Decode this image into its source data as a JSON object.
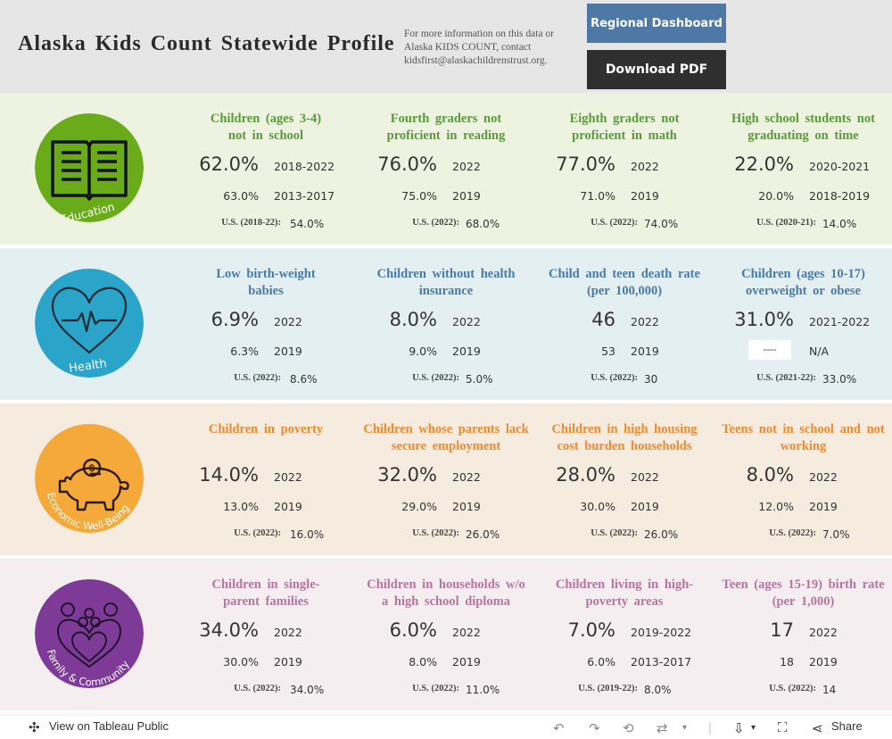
{
  "header": {
    "title": "Alaska Kids Count Statewide Profile",
    "info": "For more information on this data or Alaska KIDS COUNT, contact kidsfirst@alaskachildrenstrust.org.",
    "regional_button": "Regional Dashboard",
    "pdf_button": "Download PDF"
  },
  "sections": {
    "education": {
      "label": "Education",
      "color": "#6aab1a",
      "bg": "#eef2e0",
      "title_color": "#5a9a3a",
      "cards": [
        {
          "title": "Children (ages 3-4) not in school",
          "value": "62.0%",
          "year": "2018-2022",
          "prev_value": "63.0%",
          "prev_year": "2013-2017",
          "us_label": "U.S. (2018-22):",
          "us_value": "54.0%"
        },
        {
          "title": "Fourth graders not proficient in reading",
          "value": "76.0%",
          "year": "2022",
          "prev_value": "75.0%",
          "prev_year": "2019",
          "us_label": "U.S. (2022):",
          "us_value": "68.0%"
        },
        {
          "title": "Eighth graders not proficient in math",
          "value": "77.0%",
          "year": "2022",
          "prev_value": "71.0%",
          "prev_year": "2019",
          "us_label": "U.S. (2022):",
          "us_value": "74.0%"
        },
        {
          "title": "High school students not graduating on time",
          "value": "22.0%",
          "year": "2020-2021",
          "prev_value": "20.0%",
          "prev_year": "2018-2019",
          "us_label": "U.S. (2020-21):",
          "us_value": "14.0%"
        }
      ]
    },
    "health": {
      "label": "Health",
      "color": "#2aa4c9",
      "bg": "#e3eff0",
      "title_color": "#4a7ba7",
      "cards": [
        {
          "title": "Low birth-weight babies",
          "value": "6.9%",
          "year": "2022",
          "prev_value": "6.3%",
          "prev_year": "2019",
          "us_label": "U.S. (2022):",
          "us_value": "8.6%"
        },
        {
          "title": "Children without health insurance",
          "value": "8.0%",
          "year": "2022",
          "prev_value": "9.0%",
          "prev_year": "2019",
          "us_label": "U.S. (2022):",
          "us_value": "5.0%"
        },
        {
          "title": "Child and teen death rate (per 100,000)",
          "value": "46",
          "year": "2022",
          "prev_value": "53",
          "prev_year": "2019",
          "us_label": "U.S. (2022):",
          "us_value": "30"
        },
        {
          "title": "Children (ages 10-17) overweight or obese",
          "value": "31.0%",
          "year": "2021-2022",
          "prev_value": "----",
          "prev_year": "N/A",
          "us_label": "U.S. (2021-22):",
          "us_value": "33.0%"
        }
      ]
    },
    "economic": {
      "label": "Economic Well-Being",
      "color": "#f5a93a",
      "bg": "#f5ebdf",
      "title_color": "#f08a2a",
      "cards": [
        {
          "title": "Children in poverty",
          "value": "14.0%",
          "year": "2022",
          "prev_value": "13.0%",
          "prev_year": "2019",
          "us_label": "U.S. (2022):",
          "us_value": "16.0%"
        },
        {
          "title": "Children whose parents lack secure employment",
          "value": "32.0%",
          "year": "2022",
          "prev_value": "29.0%",
          "prev_year": "2019",
          "us_label": "U.S. (2022):",
          "us_value": "26.0%"
        },
        {
          "title": "Children in high housing cost burden households",
          "value": "28.0%",
          "year": "2022",
          "prev_value": "30.0%",
          "prev_year": "2019",
          "us_label": "U.S. (2022):",
          "us_value": "26.0%"
        },
        {
          "title": "Teens not in school and not working",
          "value": "8.0%",
          "year": "2022",
          "prev_value": "12.0%",
          "prev_year": "2019",
          "us_label": "U.S. (2022):",
          "us_value": "7.0%"
        }
      ]
    },
    "family": {
      "label": "Family & Community",
      "color": "#7d3a97",
      "bg": "#f5eef1",
      "title_color": "#b6749e",
      "cards": [
        {
          "title": "Children in single-parent families",
          "value": "34.0%",
          "year": "2022",
          "prev_value": "30.0%",
          "prev_year": "2019",
          "us_label": "U.S. (2022):",
          "us_value": "34.0%"
        },
        {
          "title": "Children in households w/o a high school diploma",
          "value": "6.0%",
          "year": "2022",
          "prev_value": "8.0%",
          "prev_year": "2019",
          "us_label": "U.S. (2022):",
          "us_value": "11.0%"
        },
        {
          "title": "Children living in high-poverty areas",
          "value": "7.0%",
          "year": "2019-2022",
          "prev_value": "6.0%",
          "prev_year": "2013-2017",
          "us_label": "U.S. (2019-22):",
          "us_value": "8.0%"
        },
        {
          "title": "Teen (ages 15-19) birth rate (per 1,000)",
          "value": "17",
          "year": "2022",
          "prev_value": "18",
          "prev_year": "2019",
          "us_label": "U.S. (2022):",
          "us_value": "14"
        }
      ]
    }
  },
  "footer": {
    "view_label": "View on Tableau Public",
    "share_label": "Share",
    "icons": [
      "undo-icon",
      "redo-icon",
      "revert-icon",
      "refresh-icon",
      "download-icon",
      "fullscreen-icon",
      "share-icon"
    ]
  }
}
